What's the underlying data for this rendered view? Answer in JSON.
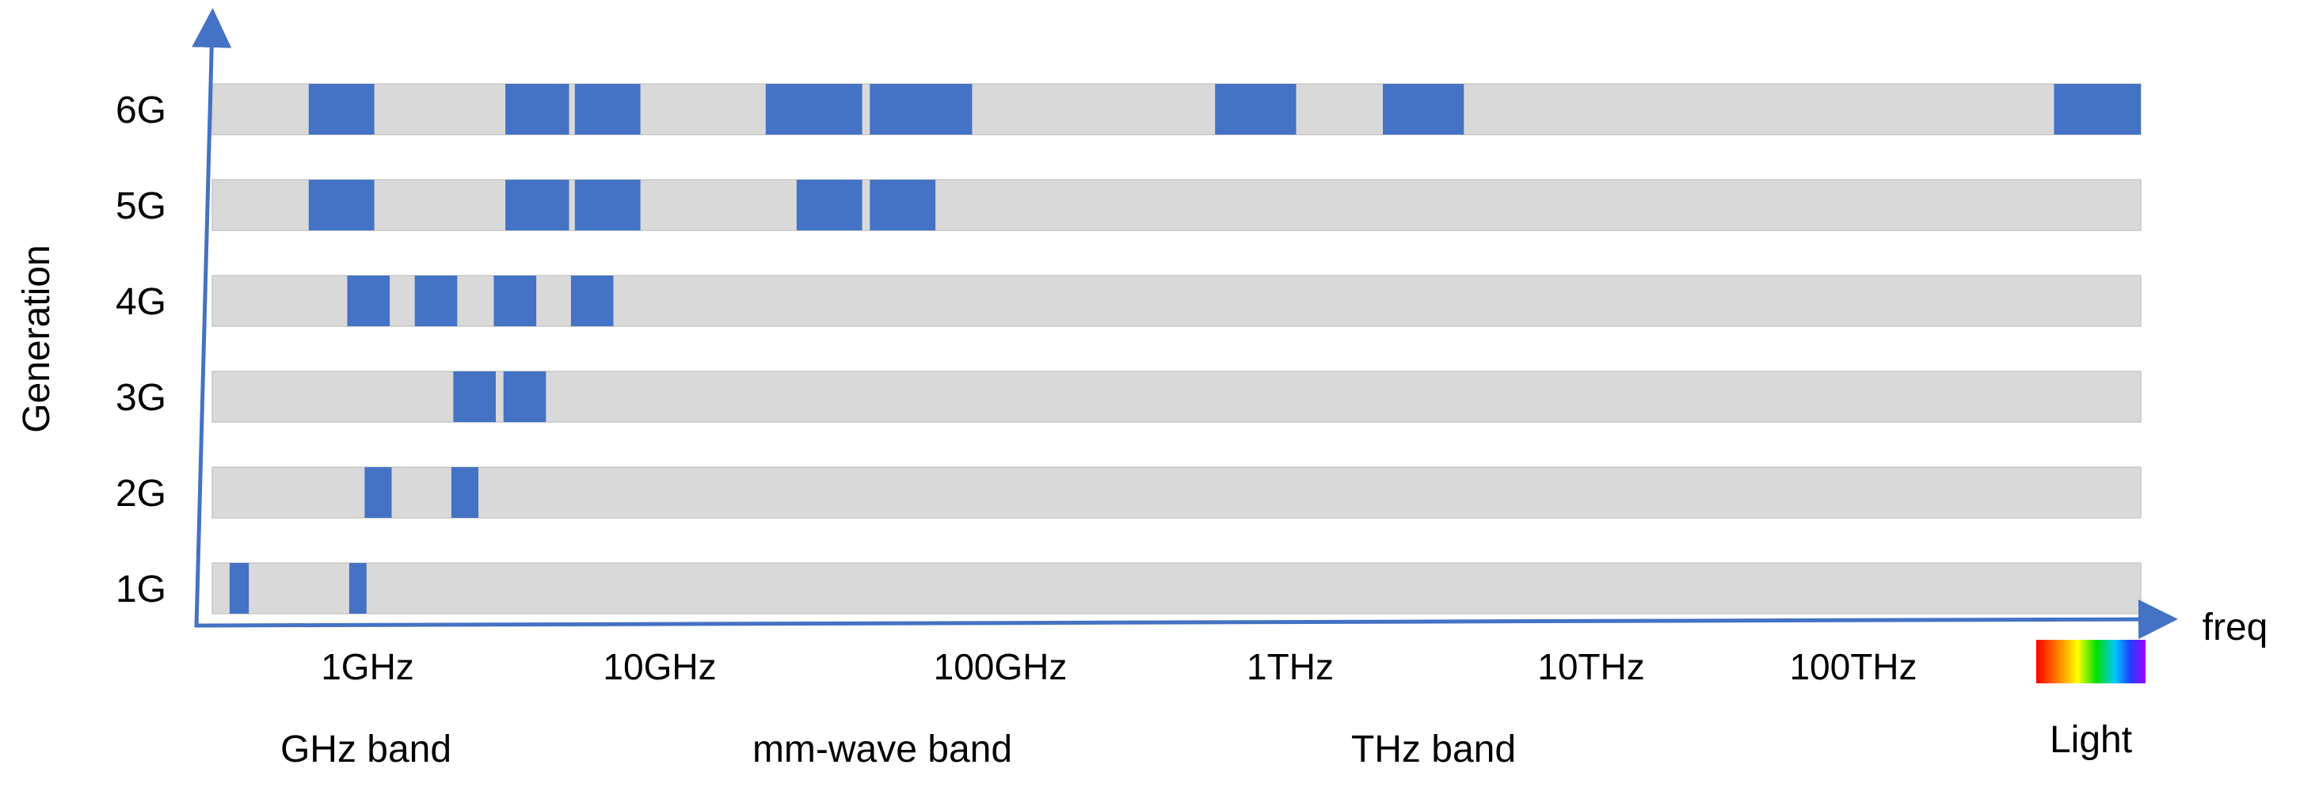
{
  "y_axis": {
    "label": "Generation"
  },
  "x_axis": {
    "label": "freq"
  },
  "generations": [
    {
      "label": "6G",
      "bands": [
        [
          0.05,
          0.084
        ],
        [
          0.152,
          0.185
        ],
        [
          0.188,
          0.222
        ],
        [
          0.287,
          0.337
        ],
        [
          0.341,
          0.394
        ],
        [
          0.52,
          0.562
        ],
        [
          0.607,
          0.649
        ],
        [
          0.955,
          1.0
        ]
      ]
    },
    {
      "label": "5G",
      "bands": [
        [
          0.05,
          0.084
        ],
        [
          0.152,
          0.185
        ],
        [
          0.188,
          0.222
        ],
        [
          0.303,
          0.337
        ],
        [
          0.341,
          0.375
        ]
      ]
    },
    {
      "label": "4G",
      "bands": [
        [
          0.07,
          0.092
        ],
        [
          0.105,
          0.127
        ],
        [
          0.146,
          0.168
        ],
        [
          0.186,
          0.208
        ]
      ]
    },
    {
      "label": "3G",
      "bands": [
        [
          0.125,
          0.147
        ],
        [
          0.151,
          0.173
        ]
      ]
    },
    {
      "label": "2G",
      "bands": [
        [
          0.079,
          0.093
        ],
        [
          0.124,
          0.138
        ]
      ]
    },
    {
      "label": "1G",
      "bands": [
        [
          0.009,
          0.019
        ],
        [
          0.071,
          0.08
        ]
      ]
    }
  ],
  "frequency_ticks": [
    "1GHz",
    "10GHz",
    "100GHz",
    "1THz",
    "10THz",
    "100THz"
  ],
  "band_labels": [
    "GHz band",
    "mm-wave band",
    "THz band",
    "Light"
  ],
  "colors": {
    "band": "#4472c4",
    "track": "#d9d9d9",
    "axis": "#4472c4",
    "text": "#000000"
  },
  "light_swatch": {
    "icon": "visible-spectrum-gradient"
  }
}
